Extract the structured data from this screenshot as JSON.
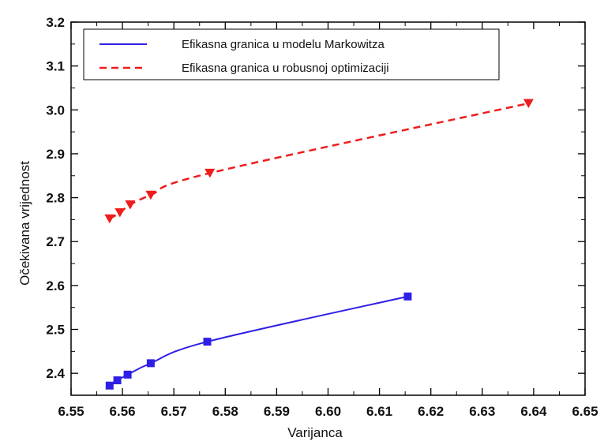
{
  "chart_data": {
    "type": "line",
    "xlabel": "Varijanca",
    "ylabel": "Očekivana vrijednost",
    "xlim": [
      6.55,
      6.65
    ],
    "ylim": [
      2.35,
      3.2
    ],
    "x_ticks": [
      "6.55",
      "6.56",
      "6.57",
      "6.58",
      "6.59",
      "6.60",
      "6.61",
      "6.62",
      "6.63",
      "6.64",
      "6.65"
    ],
    "y_ticks": [
      "2.4",
      "2.5",
      "2.6",
      "2.7",
      "2.8",
      "2.9",
      "3.0",
      "3.1",
      "3.2"
    ],
    "x_tick_values": [
      6.55,
      6.56,
      6.57,
      6.58,
      6.59,
      6.6,
      6.61,
      6.62,
      6.63,
      6.64,
      6.65
    ],
    "y_tick_values": [
      2.4,
      2.5,
      2.6,
      2.7,
      2.8,
      2.9,
      3.0,
      3.1,
      3.2
    ],
    "grid": false,
    "legend_position": "top",
    "series": [
      {
        "name": "Efikasna granica u modelu Markowitza",
        "color": "#2f1fe6",
        "line_style": "solid",
        "marker": "square",
        "x": [
          6.5575,
          6.559,
          6.561,
          6.5655,
          6.5765,
          6.6155
        ],
        "y": [
          2.372,
          2.384,
          2.397,
          2.423,
          2.472,
          2.575
        ]
      },
      {
        "name": "Efikasna granica u robusnoj optimizaciji",
        "color": "#ee1c1c",
        "line_style": "dashed",
        "marker": "triangle-down",
        "x": [
          6.5575,
          6.5595,
          6.5615,
          6.5655,
          6.577,
          6.639
        ],
        "y": [
          2.752,
          2.766,
          2.784,
          2.806,
          2.856,
          3.015
        ]
      }
    ]
  }
}
